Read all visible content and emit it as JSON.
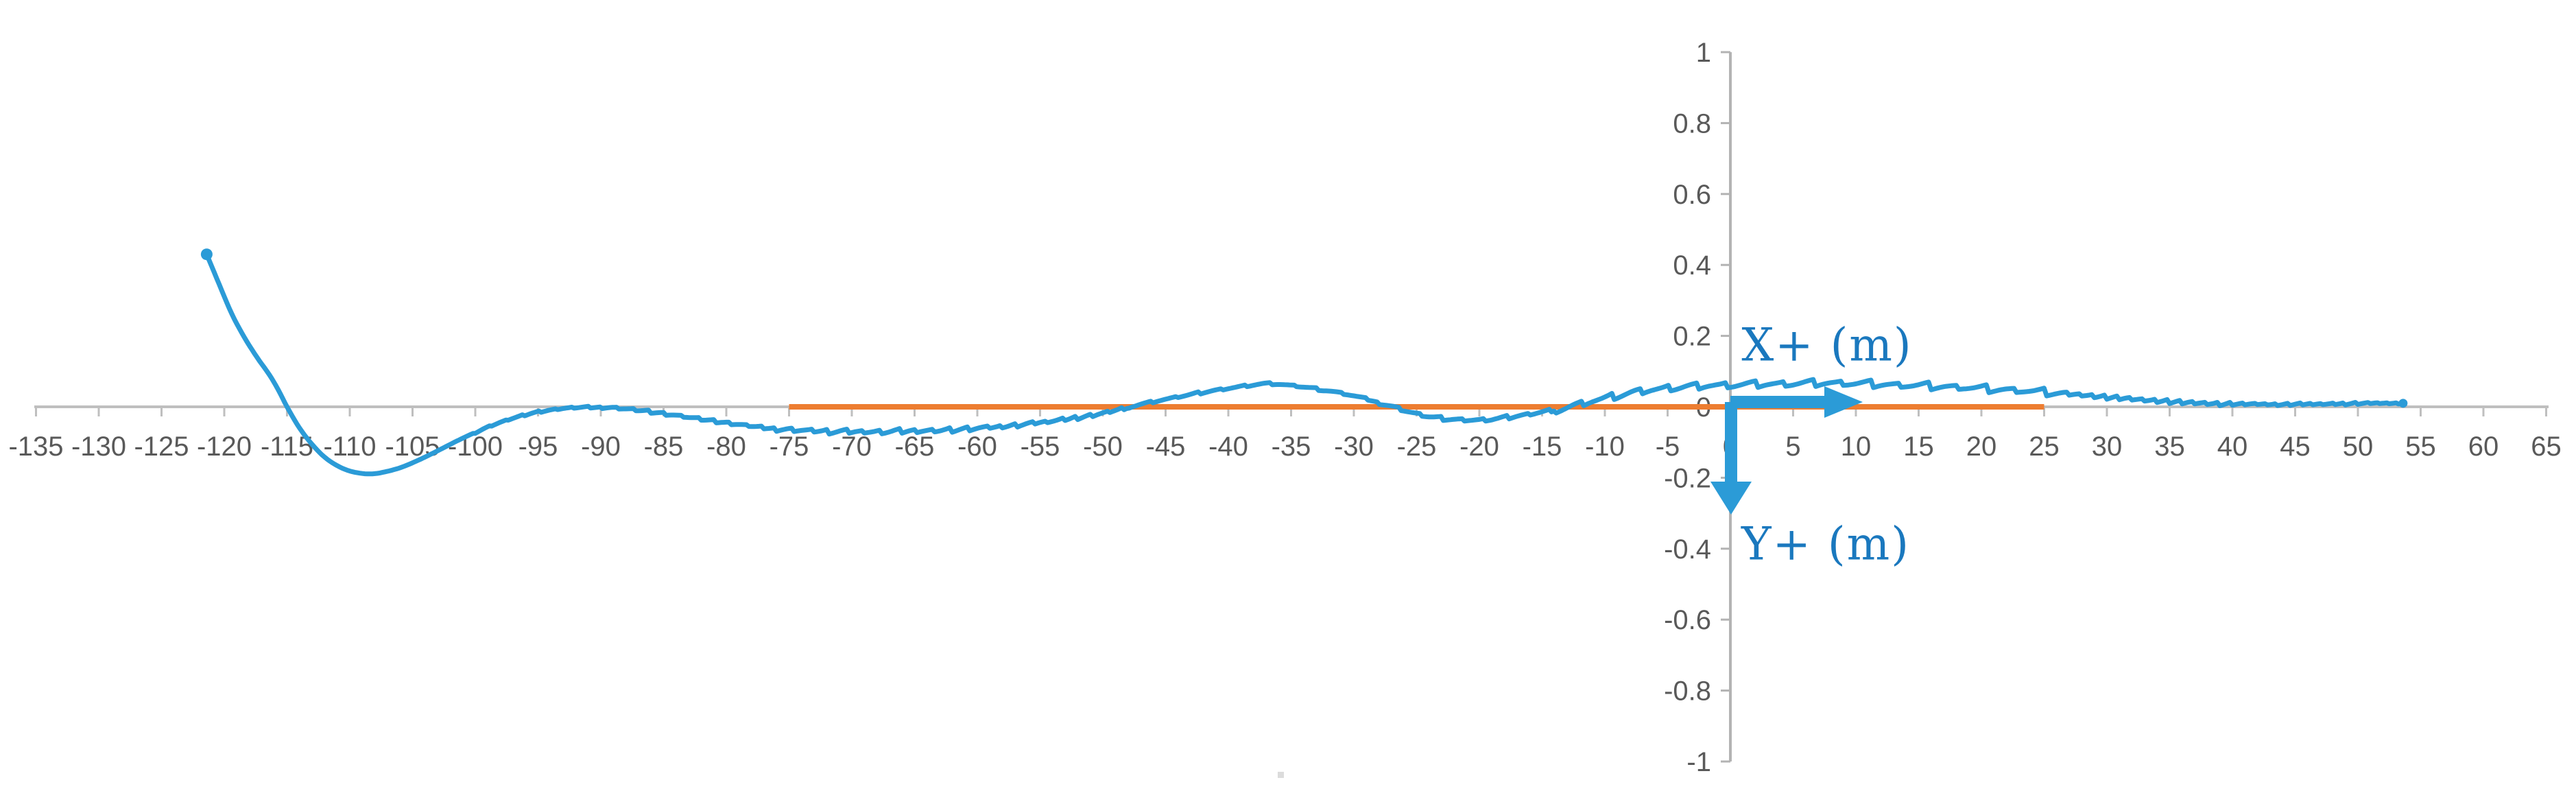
{
  "figure": {
    "background": "#FFFFFF",
    "description": "Excel-style trajectory plot: blue path line with direction arrows at origin, orange zero-reference segment"
  },
  "colors": {
    "trajectory_blue": "#2B9BD7",
    "label_blue": "#1A78BE",
    "reference_orange": "#ED7D31",
    "x_axis_gray": "#BFBFBF",
    "y_axis_gray": "#B3B3B3",
    "tick_label_gray": "#595959",
    "artifact_gray": "#DCDCDC"
  },
  "annotations": {
    "x_arrow_label": "X+ (m)",
    "y_arrow_label": "Y+ (m)"
  },
  "chart_data": {
    "type": "line",
    "title": "",
    "xlabel": "X+ (m)",
    "ylabel": "Y+ (m)",
    "grid": false,
    "legend": false,
    "x_axis": {
      "min": -135,
      "max": 65,
      "tick_step": 5,
      "tick_labels": [
        "-135",
        "-130",
        "-125",
        "-120",
        "-115",
        "-110",
        "-105",
        "-100",
        "-95",
        "-90",
        "-85",
        "-80",
        "-75",
        "-70",
        "-65",
        "-60",
        "-55",
        "-50",
        "-45",
        "-40",
        "-35",
        "-30",
        "-25",
        "-20",
        "-15",
        "-10",
        "-5",
        "0",
        "5",
        "10",
        "15",
        "20",
        "25",
        "30",
        "35",
        "40",
        "45",
        "50",
        "55",
        "60",
        "65"
      ]
    },
    "y_axis": {
      "min": -1,
      "max": 1,
      "tick_step": 0.2,
      "tick_labels": [
        "1",
        "0.8",
        "0.6",
        "0.4",
        "0.2",
        "0",
        "-0.2",
        "-0.4",
        "-0.6",
        "-0.8",
        "-1"
      ],
      "tick_values": [
        1,
        0.8,
        0.6,
        0.4,
        0.2,
        0,
        -0.2,
        -0.4,
        -0.6,
        -0.8,
        -1
      ]
    },
    "series": [
      {
        "name": "trajectory",
        "color": "#2B9BD7",
        "start_marker": [
          -121.4,
          0.43
        ],
        "end_marker": [
          53.6,
          0.01
        ],
        "points": [
          [
            -121.4,
            0.43
          ],
          [
            -120.4,
            0.345
          ],
          [
            -119.4,
            0.262
          ],
          [
            -118.4,
            0.196
          ],
          [
            -117.4,
            0.14
          ],
          [
            -116.4,
            0.09
          ],
          [
            -115.7,
            0.048
          ],
          [
            -115,
            0
          ],
          [
            -114,
            -0.06
          ],
          [
            -113,
            -0.106
          ],
          [
            -112,
            -0.142
          ],
          [
            -111,
            -0.166
          ],
          [
            -110,
            -0.181
          ],
          [
            -109,
            -0.188
          ],
          [
            -108.2,
            -0.189
          ],
          [
            -107.4,
            -0.185
          ],
          [
            -106,
            -0.172
          ],
          [
            -104.5,
            -0.15
          ],
          [
            -103,
            -0.124
          ],
          [
            -101.5,
            -0.097
          ],
          [
            -100,
            -0.072
          ],
          [
            -98.5,
            -0.05
          ],
          [
            -97,
            -0.032
          ],
          [
            -95.5,
            -0.018
          ],
          [
            -94,
            -0.009
          ],
          [
            -92.5,
            -0.003
          ],
          [
            -91,
            -0.001
          ],
          [
            -89.5,
            -0.002
          ],
          [
            -88,
            -0.006
          ],
          [
            -86,
            -0.014
          ],
          [
            -84,
            -0.024
          ],
          [
            -82,
            -0.035
          ],
          [
            -80,
            -0.045
          ],
          [
            -78,
            -0.054
          ],
          [
            -76,
            -0.061
          ],
          [
            -74,
            -0.066
          ],
          [
            -72,
            -0.069
          ],
          [
            -70,
            -0.07
          ],
          [
            -68,
            -0.07
          ],
          [
            -66,
            -0.069
          ],
          [
            -64,
            -0.067
          ],
          [
            -62,
            -0.064
          ],
          [
            -60,
            -0.06
          ],
          [
            -58,
            -0.055
          ],
          [
            -56,
            -0.048
          ],
          [
            -54,
            -0.04
          ],
          [
            -52,
            -0.03
          ],
          [
            -50,
            -0.018
          ],
          [
            -48.5,
            -0.006
          ],
          [
            -47.5,
            0.003
          ],
          [
            -46,
            0.014
          ],
          [
            -44,
            0.028
          ],
          [
            -42,
            0.041
          ],
          [
            -40,
            0.052
          ],
          [
            -38.5,
            0.06
          ],
          [
            -37.5,
            0.064
          ],
          [
            -36.5,
            0.065
          ],
          [
            -35.5,
            0.062
          ],
          [
            -34,
            0.056
          ],
          [
            -32,
            0.045
          ],
          [
            -30,
            0.031
          ],
          [
            -28.5,
            0.018
          ],
          [
            -27.6,
            0.008
          ],
          [
            -26.6,
            -0.003
          ],
          [
            -25.5,
            -0.015
          ],
          [
            -24,
            -0.027
          ],
          [
            -22.5,
            -0.034
          ],
          [
            -21,
            -0.037
          ],
          [
            -19.5,
            -0.036
          ],
          [
            -18,
            -0.031
          ],
          [
            -16.5,
            -0.024
          ],
          [
            -15,
            -0.015
          ],
          [
            -13.5,
            -0.005
          ],
          [
            -12.6,
            0.002
          ],
          [
            -11.5,
            0.012
          ],
          [
            -10,
            0.024
          ],
          [
            -8.5,
            0.035
          ],
          [
            -7,
            0.044
          ],
          [
            -5.5,
            0.051
          ],
          [
            -4,
            0.056
          ],
          [
            -2.5,
            0.059
          ],
          [
            -1,
            0.061
          ],
          [
            1,
            0.063
          ],
          [
            3,
            0.064
          ],
          [
            5,
            0.066
          ],
          [
            7,
            0.067
          ],
          [
            9,
            0.067
          ],
          [
            11,
            0.065
          ],
          [
            13,
            0.062
          ],
          [
            15,
            0.06
          ],
          [
            17,
            0.057
          ],
          [
            19,
            0.054
          ],
          [
            21,
            0.05
          ],
          [
            23,
            0.046
          ],
          [
            25,
            0.042
          ],
          [
            27,
            0.037
          ],
          [
            29,
            0.031
          ],
          [
            31,
            0.026
          ],
          [
            33,
            0.02
          ],
          [
            35,
            0.016
          ],
          [
            37,
            0.012
          ],
          [
            39,
            0.009
          ],
          [
            41,
            0.008
          ],
          [
            43,
            0.007
          ],
          [
            45,
            0.007
          ],
          [
            47,
            0.008
          ],
          [
            49,
            0.009
          ],
          [
            51,
            0.01
          ],
          [
            53.6,
            0.01
          ]
        ],
        "noise_bands": [
          {
            "from": -100,
            "to": -90,
            "amp": 0.003,
            "period": 1.3
          },
          {
            "from": -90,
            "to": -76,
            "amp": 0.005,
            "period": 1.3
          },
          {
            "from": -76,
            "to": -58,
            "amp": 0.008,
            "period": 1.4
          },
          {
            "from": -58,
            "to": -48,
            "amp": 0.006,
            "period": 1.2
          },
          {
            "from": -48,
            "to": -28,
            "amp": 0.004,
            "period": 1.9
          },
          {
            "from": -28,
            "to": -14,
            "amp": 0.006,
            "period": 1.7
          },
          {
            "from": -14,
            "to": 27,
            "amp": 0.012,
            "period": 2.3
          },
          {
            "from": 27,
            "to": 40,
            "amp": 0.007,
            "period": 1.0
          },
          {
            "from": 40,
            "to": 50,
            "amp": 0.004,
            "period": 0.9
          },
          {
            "from": 50,
            "to": 53.7,
            "amp": 0.003,
            "period": 0.8
          }
        ]
      },
      {
        "name": "zero-reference-segment",
        "color": "#ED7D31",
        "points": [
          [
            -75,
            0
          ],
          [
            25,
            0
          ]
        ]
      }
    ]
  }
}
